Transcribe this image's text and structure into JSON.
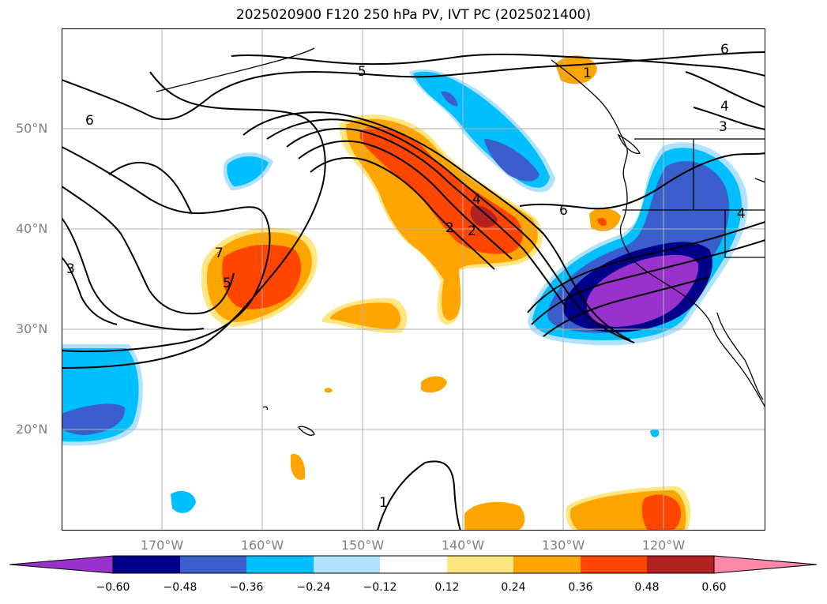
{
  "title": "2025020900 F120 250 hPa PV, IVT PC (2025021400)",
  "lat_labels": [
    "50°N",
    "40°N",
    "30°N",
    "20°N"
  ],
  "lon_labels": [
    "170°W",
    "160°W",
    "150°W",
    "140°W",
    "130°W",
    "120°W"
  ],
  "contour_labels": [
    "6",
    "5",
    "6",
    "4",
    "3",
    "6",
    "3",
    "7",
    "5",
    "4",
    "2",
    "2",
    "1",
    "4",
    "1"
  ],
  "colorbar": {
    "ticks": [
      "−0.60",
      "−0.48",
      "−0.36",
      "−0.24",
      "−0.12",
      "0.12",
      "0.24",
      "0.36",
      "0.48",
      "0.60"
    ],
    "colors": [
      "#9932cc",
      "#00008b",
      "#3a5fcd",
      "#00bfff",
      "#b0e2ff",
      "#ffffff",
      "#ffe680",
      "#ffa500",
      "#ff4500",
      "#b22222",
      "#ff88aa"
    ]
  },
  "colors": {
    "neg_strong": "#9932cc",
    "neg_dark": "#00008b",
    "neg_mid": "#3a5fcd",
    "neg_light": "#00bfff",
    "neg_faint": "#b0e2ff",
    "pos_faint": "#ffe680",
    "pos_light": "#ffa500",
    "pos_mid": "#ff4500",
    "pos_dark": "#b22222"
  }
}
